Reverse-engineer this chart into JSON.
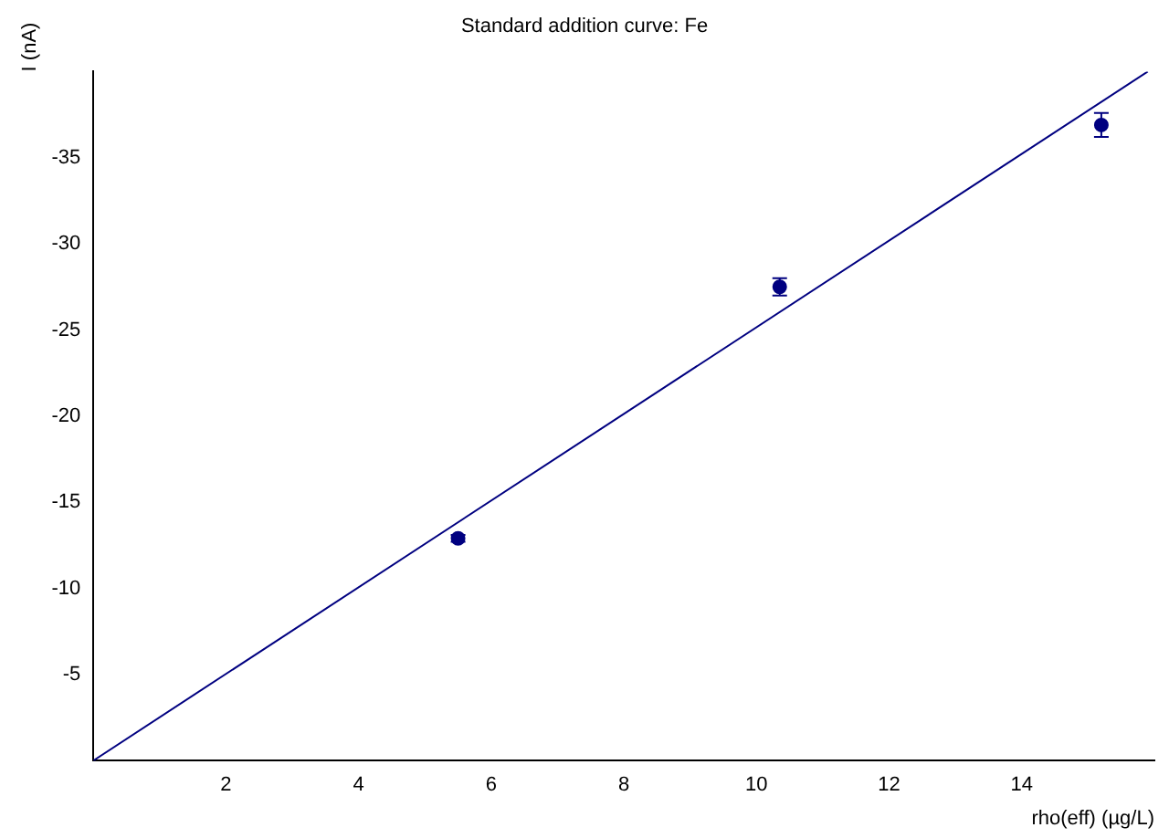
{
  "chart_data": {
    "type": "scatter",
    "title": "Standard addition curve: Fe",
    "xlabel": "rho(eff) (µg/L)",
    "ylabel": "I (nA)",
    "xlim": [
      0,
      16
    ],
    "ylim": [
      0,
      -40
    ],
    "xticks": [
      2,
      4,
      6,
      8,
      10,
      12,
      14
    ],
    "yticks": [
      -5,
      -10,
      -15,
      -20,
      -25,
      -30,
      -35
    ],
    "grid": false,
    "legend": false,
    "marker": "circle",
    "series": [
      {
        "type": "scatter",
        "color": "#000080",
        "x": [
          5.5,
          10.35,
          15.2
        ],
        "values": [
          -12.9,
          -27.5,
          -36.9
        ],
        "errors": [
          0.2,
          0.5,
          0.7
        ]
      },
      {
        "type": "line",
        "color": "#000080",
        "marker": "none",
        "x": [
          0,
          15.9
        ],
        "values": [
          0,
          -40
        ]
      }
    ]
  }
}
